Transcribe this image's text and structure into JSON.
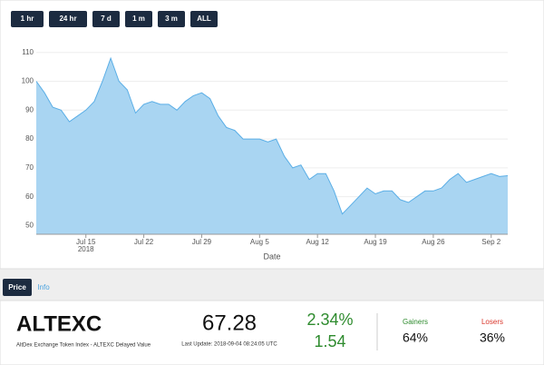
{
  "buttons": [
    "1 hr",
    "24 hr",
    "7 d",
    "1 m",
    "3 m",
    "ALL"
  ],
  "chart_data": {
    "type": "area",
    "x_label": "Date",
    "color": "#a9d5f2",
    "line_color": "#5aaee6",
    "grid": true,
    "x": [
      "2018-07-09",
      "2018-07-10",
      "2018-07-11",
      "2018-07-12",
      "2018-07-13",
      "2018-07-14",
      "2018-07-15",
      "2018-07-16",
      "2018-07-17",
      "2018-07-18",
      "2018-07-19",
      "2018-07-20",
      "2018-07-21",
      "2018-07-22",
      "2018-07-23",
      "2018-07-24",
      "2018-07-25",
      "2018-07-26",
      "2018-07-27",
      "2018-07-28",
      "2018-07-29",
      "2018-07-30",
      "2018-07-31",
      "2018-08-01",
      "2018-08-02",
      "2018-08-03",
      "2018-08-04",
      "2018-08-05",
      "2018-08-06",
      "2018-08-07",
      "2018-08-08",
      "2018-08-09",
      "2018-08-10",
      "2018-08-11",
      "2018-08-12",
      "2018-08-13",
      "2018-08-14",
      "2018-08-15",
      "2018-08-16",
      "2018-08-17",
      "2018-08-18",
      "2018-08-19",
      "2018-08-20",
      "2018-08-21",
      "2018-08-22",
      "2018-08-23",
      "2018-08-24",
      "2018-08-25",
      "2018-08-26",
      "2018-08-27",
      "2018-08-28",
      "2018-08-29",
      "2018-08-30",
      "2018-08-31",
      "2018-09-01",
      "2018-09-02",
      "2018-09-03",
      "2018-09-04"
    ],
    "values": [
      100,
      96,
      91,
      90,
      86,
      88,
      90,
      93,
      100,
      108,
      100,
      97,
      89,
      92,
      93,
      92,
      92,
      90,
      93,
      95,
      96,
      94,
      88,
      84,
      83,
      80,
      80,
      80,
      79,
      80,
      74,
      70,
      71,
      66,
      68,
      68,
      62,
      54,
      57,
      60,
      63,
      61,
      62,
      62,
      59,
      58,
      60,
      62,
      62,
      63,
      66,
      68,
      65,
      66,
      67,
      68,
      67,
      67.3
    ],
    "xlim": [
      "2018-07-09",
      "2018-09-04"
    ],
    "xticks": [
      {
        "value": "2018-07-15",
        "label": "Jul 15"
      },
      {
        "value": "2018-07-22",
        "label": "Jul 22"
      },
      {
        "value": "2018-07-29",
        "label": "Jul 29"
      },
      {
        "value": "2018-08-05",
        "label": "Aug 5"
      },
      {
        "value": "2018-08-12",
        "label": "Aug 12"
      },
      {
        "value": "2018-08-19",
        "label": "Aug 19"
      },
      {
        "value": "2018-08-26",
        "label": "Aug 26"
      },
      {
        "value": "2018-09-02",
        "label": "Sep 2"
      }
    ],
    "x_year_label": "2018",
    "ylim": [
      47,
      114
    ],
    "yticks": [
      50,
      60,
      70,
      80,
      90,
      100,
      110
    ]
  },
  "tabs": [
    "Price",
    "Info"
  ],
  "ticker": {
    "symbol": "ALTEXC",
    "description": "AltDex Exchange Token Index - ALTEXC Delayed Value",
    "price": "67.28",
    "last_update": "Last Update: 2018-09-04 08:24:05 UTC",
    "change_pct": "2.34%",
    "change": "1.54",
    "gainers_label": "Gainers",
    "gainers": "64%",
    "losers_label": "Losers",
    "losers": "36%"
  }
}
